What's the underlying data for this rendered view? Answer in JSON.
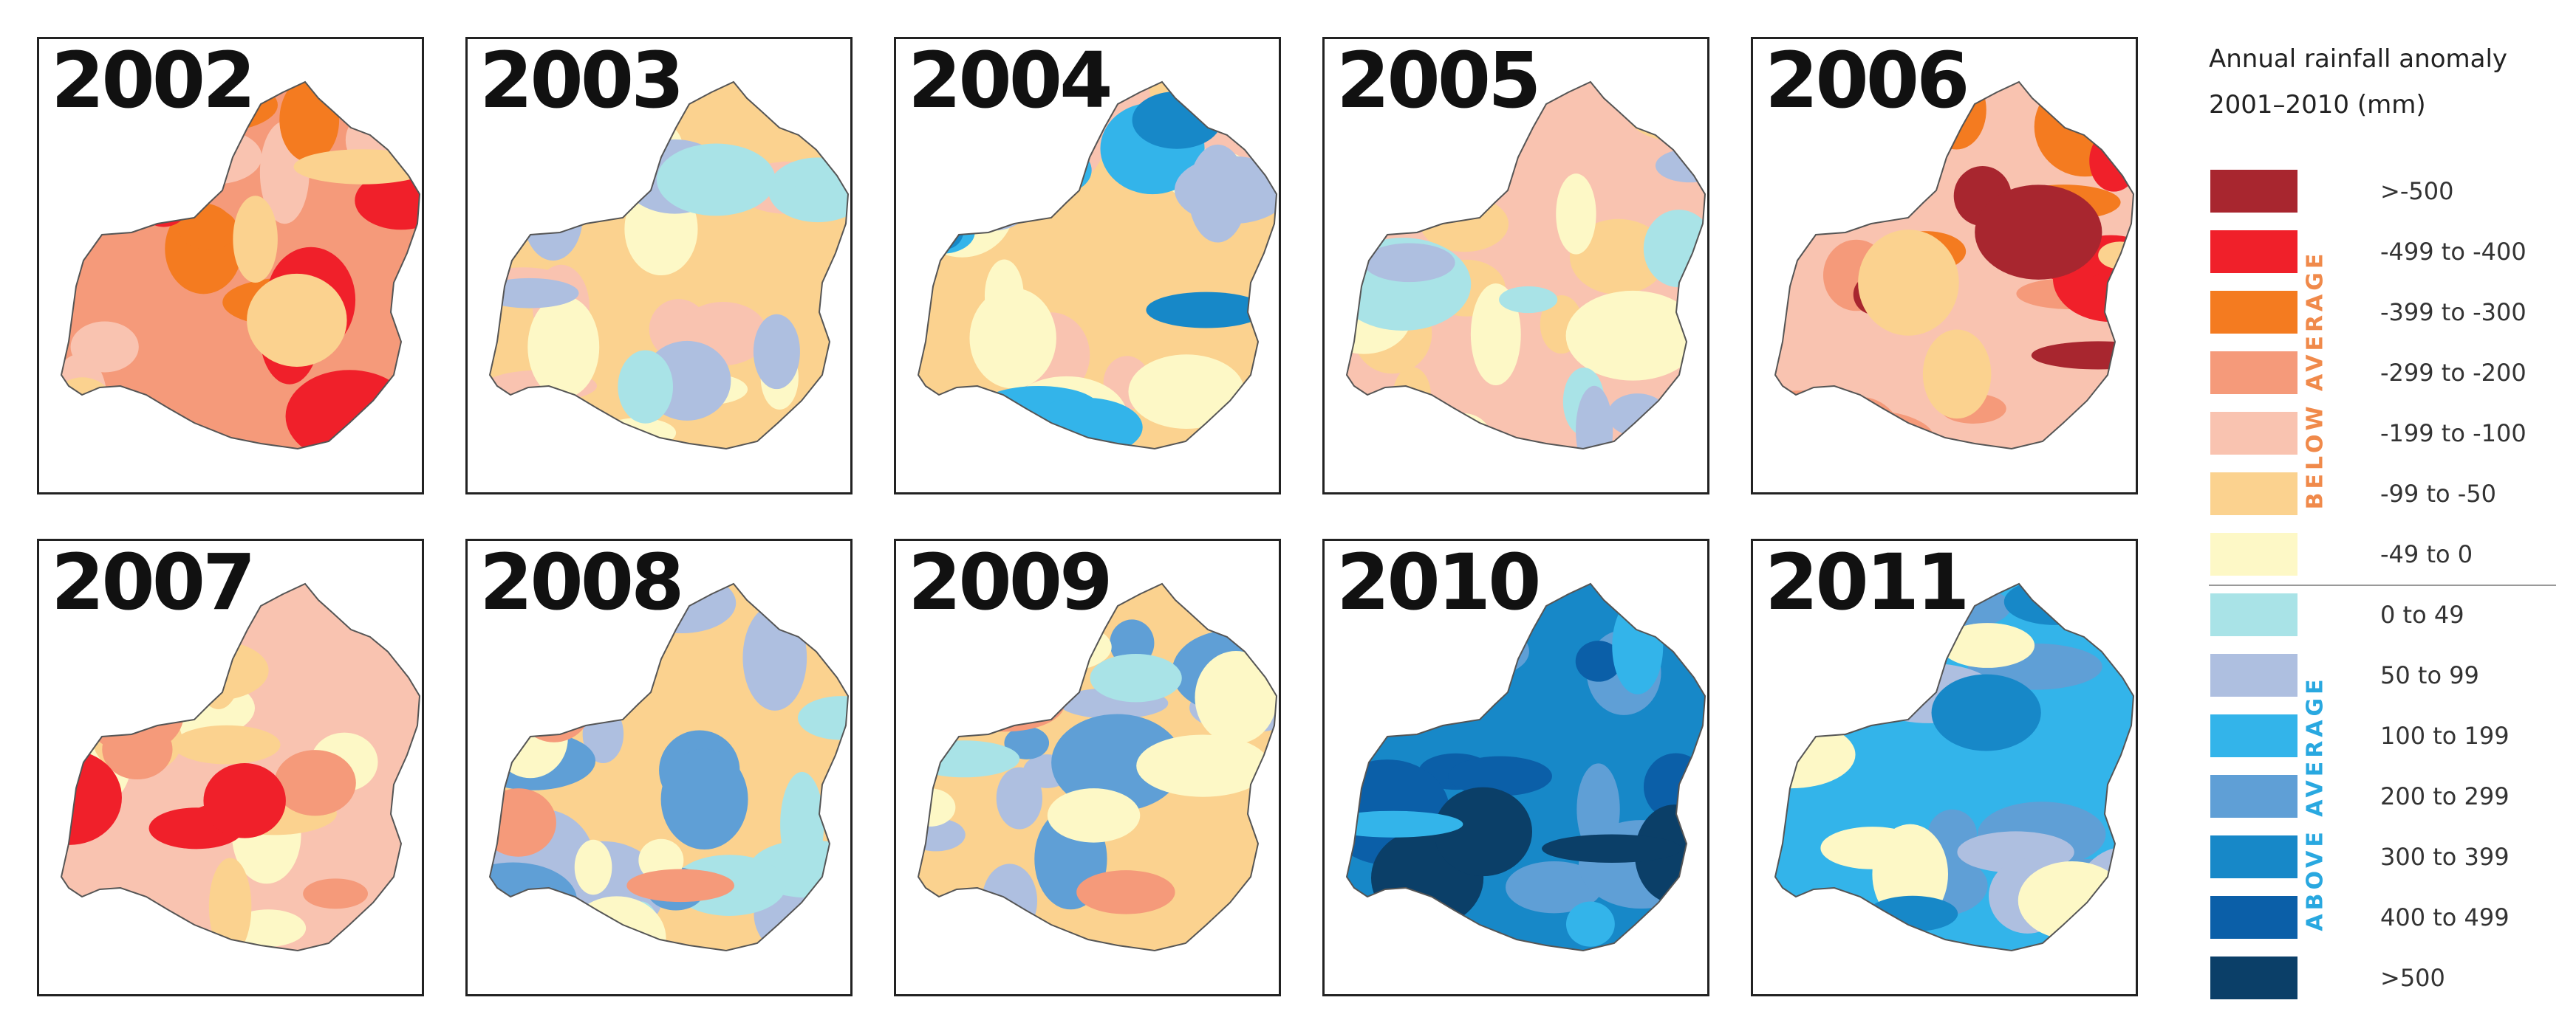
{
  "legend": {
    "title_line1": "Annual rainfall anomaly",
    "title_line2": "2001–2010 (mm)",
    "below_label": "BELOW AVERAGE",
    "above_label": "ABOVE AVERAGE",
    "below_color": "#f08a4b",
    "above_color": "#29a8e0",
    "classes": [
      {
        "label": ">-500",
        "color": "#a8262f"
      },
      {
        "label": "-499 to -400",
        "color": "#f0202a"
      },
      {
        "label": "-399 to -300",
        "color": "#f47b20"
      },
      {
        "label": "-299 to -200",
        "color": "#f59a7a"
      },
      {
        "label": "-199 to -100",
        "color": "#f9c3b0"
      },
      {
        "label": "-99 to -50",
        "color": "#fbd28f"
      },
      {
        "label": "-49 to 0",
        "color": "#fdf8c6"
      },
      {
        "label": "0 to 49",
        "color": "#a9e3e7"
      },
      {
        "label": "50 to 99",
        "color": "#aebfe0"
      },
      {
        "label": "100 to 199",
        "color": "#33b4ea"
      },
      {
        "label": "200 to 299",
        "color": "#5f9fd6"
      },
      {
        "label": "300 to 399",
        "color": "#1788c8"
      },
      {
        "label": "400 to 499",
        "color": "#0b5fa8"
      },
      {
        "label": ">500",
        "color": "#0b3f68"
      }
    ]
  },
  "maps": [
    {
      "year": "2002",
      "base": "#f59a7a",
      "patches": [
        "#f9c3b0",
        "#f47b20",
        "#f0202a",
        "#fbd28f"
      ]
    },
    {
      "year": "2003",
      "base": "#fbd28f",
      "patches": [
        "#f9c3b0",
        "#fdf8c6",
        "#aebfe0",
        "#a9e3e7"
      ]
    },
    {
      "year": "2004",
      "base": "#fbd28f",
      "patches": [
        "#f9c3b0",
        "#fdf8c6",
        "#33b4ea",
        "#1788c8",
        "#aebfe0"
      ]
    },
    {
      "year": "2005",
      "base": "#f9c3b0",
      "patches": [
        "#fbd28f",
        "#fdf8c6",
        "#a9e3e7",
        "#aebfe0"
      ]
    },
    {
      "year": "2006",
      "base": "#f9c3b0",
      "patches": [
        "#f59a7a",
        "#f47b20",
        "#f0202a",
        "#a8262f",
        "#fbd28f"
      ]
    },
    {
      "year": "2007",
      "base": "#f9c3b0",
      "patches": [
        "#fdf8c6",
        "#fbd28f",
        "#f59a7a",
        "#f0202a"
      ]
    },
    {
      "year": "2008",
      "base": "#fbd28f",
      "patches": [
        "#aebfe0",
        "#a9e3e7",
        "#5f9fd6",
        "#fdf8c6",
        "#f59a7a"
      ]
    },
    {
      "year": "2009",
      "base": "#fbd28f",
      "patches": [
        "#aebfe0",
        "#5f9fd6",
        "#fdf8c6",
        "#f59a7a",
        "#a9e3e7"
      ]
    },
    {
      "year": "2010",
      "base": "#1788c8",
      "patches": [
        "#5f9fd6",
        "#0b5fa8",
        "#0b3f68",
        "#33b4ea"
      ]
    },
    {
      "year": "2011",
      "base": "#33b4ea",
      "patches": [
        "#5f9fd6",
        "#aebfe0",
        "#fdf8c6",
        "#1788c8"
      ]
    }
  ]
}
